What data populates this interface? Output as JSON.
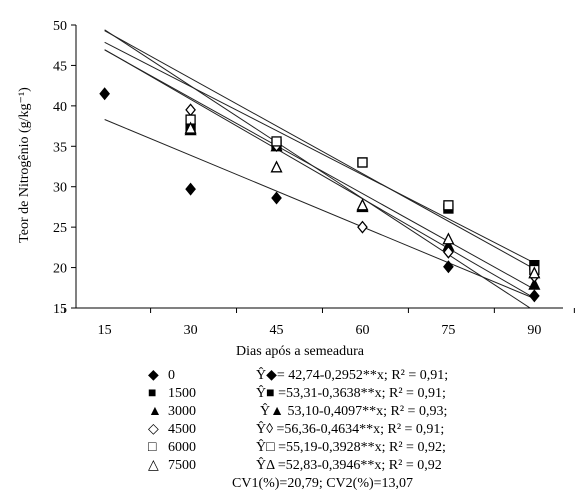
{
  "chart_data": {
    "type": "scatter",
    "xlabel": "Dias após a semeadura",
    "ylabel": "Teor de Nitrogênio (g/kg⁻¹)",
    "xlim": [
      10,
      95
    ],
    "ylim": [
      15,
      50
    ],
    "x_ticks": [
      15,
      30,
      45,
      60,
      75,
      90
    ],
    "y_ticks": [
      15,
      20,
      25,
      30,
      35,
      40,
      45,
      50
    ],
    "grid": false,
    "legend_position": "bottom",
    "series": [
      {
        "name": "0",
        "marker": "filled-diamond",
        "x": [
          15,
          30,
          45,
          60,
          75,
          90
        ],
        "y": [
          41.5,
          29.7,
          28.6,
          null,
          20.1,
          16.5
        ],
        "fit": {
          "intercept": 42.74,
          "slope": -0.2952,
          "x_range": [
            15,
            90
          ]
        }
      },
      {
        "name": "1500",
        "marker": "filled-square",
        "x": [
          30,
          45,
          60,
          75,
          90
        ],
        "y": [
          37.2,
          35.2,
          33.0,
          27.3,
          20.3
        ],
        "fit": {
          "intercept": 53.31,
          "slope": -0.3638,
          "x_range": [
            15,
            90
          ]
        }
      },
      {
        "name": "3000",
        "marker": "filled-triangle",
        "x": [
          30,
          45,
          60,
          75,
          90
        ],
        "y": [
          37.0,
          35.0,
          27.5,
          22.7,
          17.9
        ],
        "fit": {
          "intercept": 53.1,
          "slope": -0.4097,
          "x_range": [
            15,
            90
          ]
        }
      },
      {
        "name": "4500",
        "marker": "open-diamond",
        "x": [
          30,
          45,
          60,
          75,
          90
        ],
        "y": [
          39.5,
          35.1,
          25.0,
          21.9,
          18.9
        ],
        "fit": {
          "intercept": 56.36,
          "slope": -0.4634,
          "x_range": [
            15,
            90
          ]
        }
      },
      {
        "name": "6000",
        "marker": "open-square",
        "x": [
          30,
          45,
          60,
          75,
          90
        ],
        "y": [
          38.3,
          35.6,
          33.0,
          27.7,
          19.7
        ],
        "fit": {
          "intercept": 55.19,
          "slope": -0.3928,
          "x_range": [
            15,
            90
          ]
        }
      },
      {
        "name": "7500",
        "marker": "open-triangle",
        "x": [
          30,
          45,
          60,
          75,
          90
        ],
        "y": [
          37.2,
          32.4,
          27.7,
          23.5,
          19.3
        ],
        "fit": {
          "intercept": 52.83,
          "slope": -0.3946,
          "x_range": [
            15,
            90
          ]
        }
      }
    ]
  },
  "legend": {
    "items": [
      {
        "name": "0",
        "marker": "◆"
      },
      {
        "name": "1500",
        "marker": "■"
      },
      {
        "name": "3000",
        "marker": "▲"
      },
      {
        "name": "4500",
        "marker": "◇"
      },
      {
        "name": "6000",
        "marker": "□"
      },
      {
        "name": "7500",
        "marker": "△"
      }
    ],
    "equations": [
      "Ŷ◆= 42,74-0,2952**x; R² = 0,91;",
      "Ŷ■ =53,31-0,3638**x; R² = 0,91;",
      "Ŷ▲ 53,10-0,4097**x; R² = 0,93;",
      "Ŷ◊ =56,36-0,4634**x; R² = 0,91;",
      "Ŷ□ =55,19-0,3928**x; R² = 0,92;",
      "ŶΔ =52,83-0,3946**x; R² = 0,92"
    ],
    "cv": "CV1(%)=20,79; CV2(%)=13,07"
  }
}
